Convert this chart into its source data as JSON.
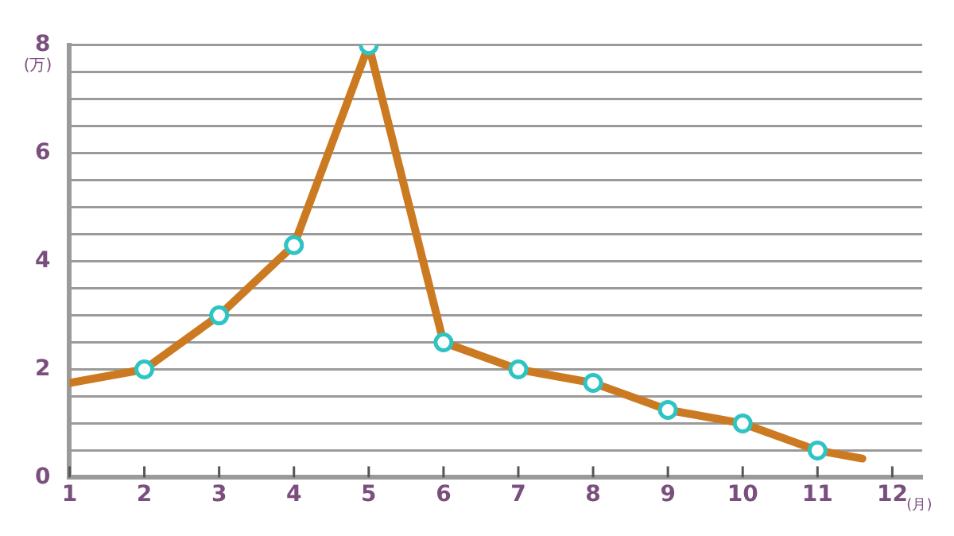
{
  "chart_data": {
    "type": "line",
    "xlabel": "(月)",
    "ylabel": "(万)",
    "x": [
      1,
      2,
      3,
      4,
      5,
      6,
      7,
      8,
      9,
      10,
      11,
      11.6
    ],
    "series": [
      {
        "color": "#cc7a22",
        "values": [
          1.75,
          2,
          3,
          4.3,
          8,
          2.5,
          2,
          1.75,
          1.25,
          1,
          0.5,
          0.35
        ]
      }
    ],
    "xlim": [
      1,
      12.4
    ],
    "xticks": [
      1,
      2,
      3,
      4,
      5,
      6,
      7,
      8,
      9,
      10,
      11,
      12
    ],
    "ylim": [
      0,
      8
    ],
    "yticks": [
      0,
      {
        "value": 0.5,
        "label": null
      },
      {
        "value": 1,
        "label": null
      },
      {
        "value": 1.5,
        "label": null
      },
      2,
      {
        "value": 2.5,
        "label": null
      },
      {
        "value": 3,
        "label": null
      },
      {
        "value": 3.5,
        "label": null
      },
      4,
      {
        "value": 4.5,
        "label": null
      },
      {
        "value": 5,
        "label": null
      },
      {
        "value": 5.5,
        "label": null
      },
      6,
      {
        "value": 6.5,
        "label": null
      },
      {
        "value": 7,
        "label": null
      },
      {
        "value": 7.5,
        "label": null
      },
      8
    ],
    "grid": "y",
    "marker": "circle",
    "line_style": "solid",
    "legend": false
  }
}
